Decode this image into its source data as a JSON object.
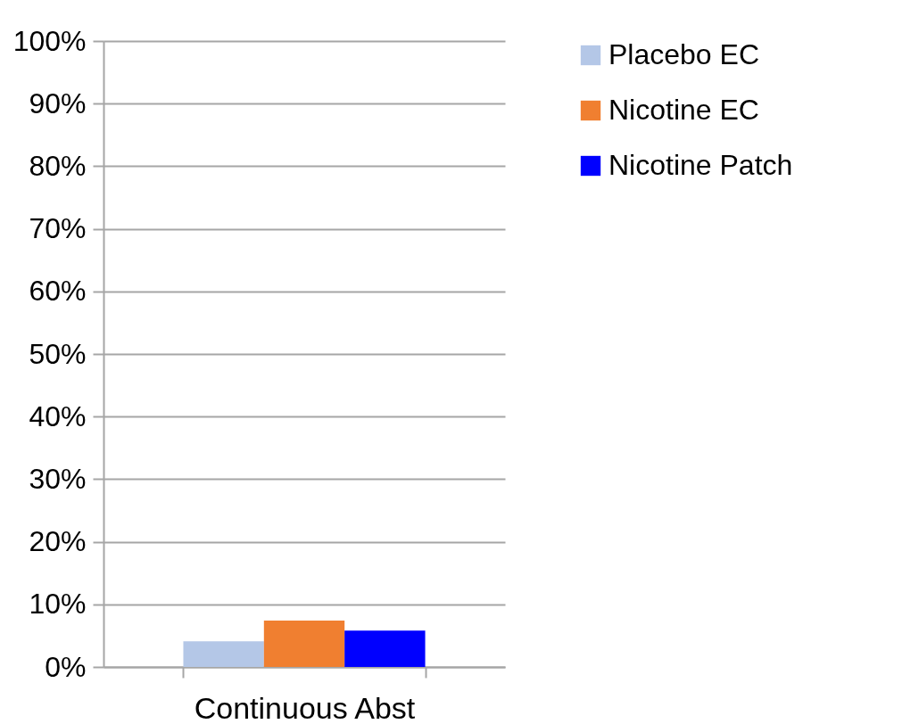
{
  "chart_data": {
    "type": "bar",
    "categories": [
      "Continuous Abst"
    ],
    "series": [
      {
        "name": "Placebo EC",
        "color": "#b4c7e7",
        "values": [
          4.1
        ]
      },
      {
        "name": "Nicotine EC",
        "color": "#f07f30",
        "values": [
          7.4
        ]
      },
      {
        "name": "Nicotine Patch",
        "color": "#0000ff",
        "values": [
          5.8
        ]
      }
    ],
    "ylim": [
      0,
      100
    ],
    "yticks": [
      {
        "value": 0,
        "label": "0%"
      },
      {
        "value": 10,
        "label": "10%"
      },
      {
        "value": 20,
        "label": "20%"
      },
      {
        "value": 30,
        "label": "30%"
      },
      {
        "value": 40,
        "label": "40%"
      },
      {
        "value": 50,
        "label": "50%"
      },
      {
        "value": 60,
        "label": "60%"
      },
      {
        "value": 70,
        "label": "70%"
      },
      {
        "value": 80,
        "label": "80%"
      },
      {
        "value": 90,
        "label": "90%"
      },
      {
        "value": 100,
        "label": "100%"
      }
    ],
    "grid": true,
    "legend": "right"
  }
}
